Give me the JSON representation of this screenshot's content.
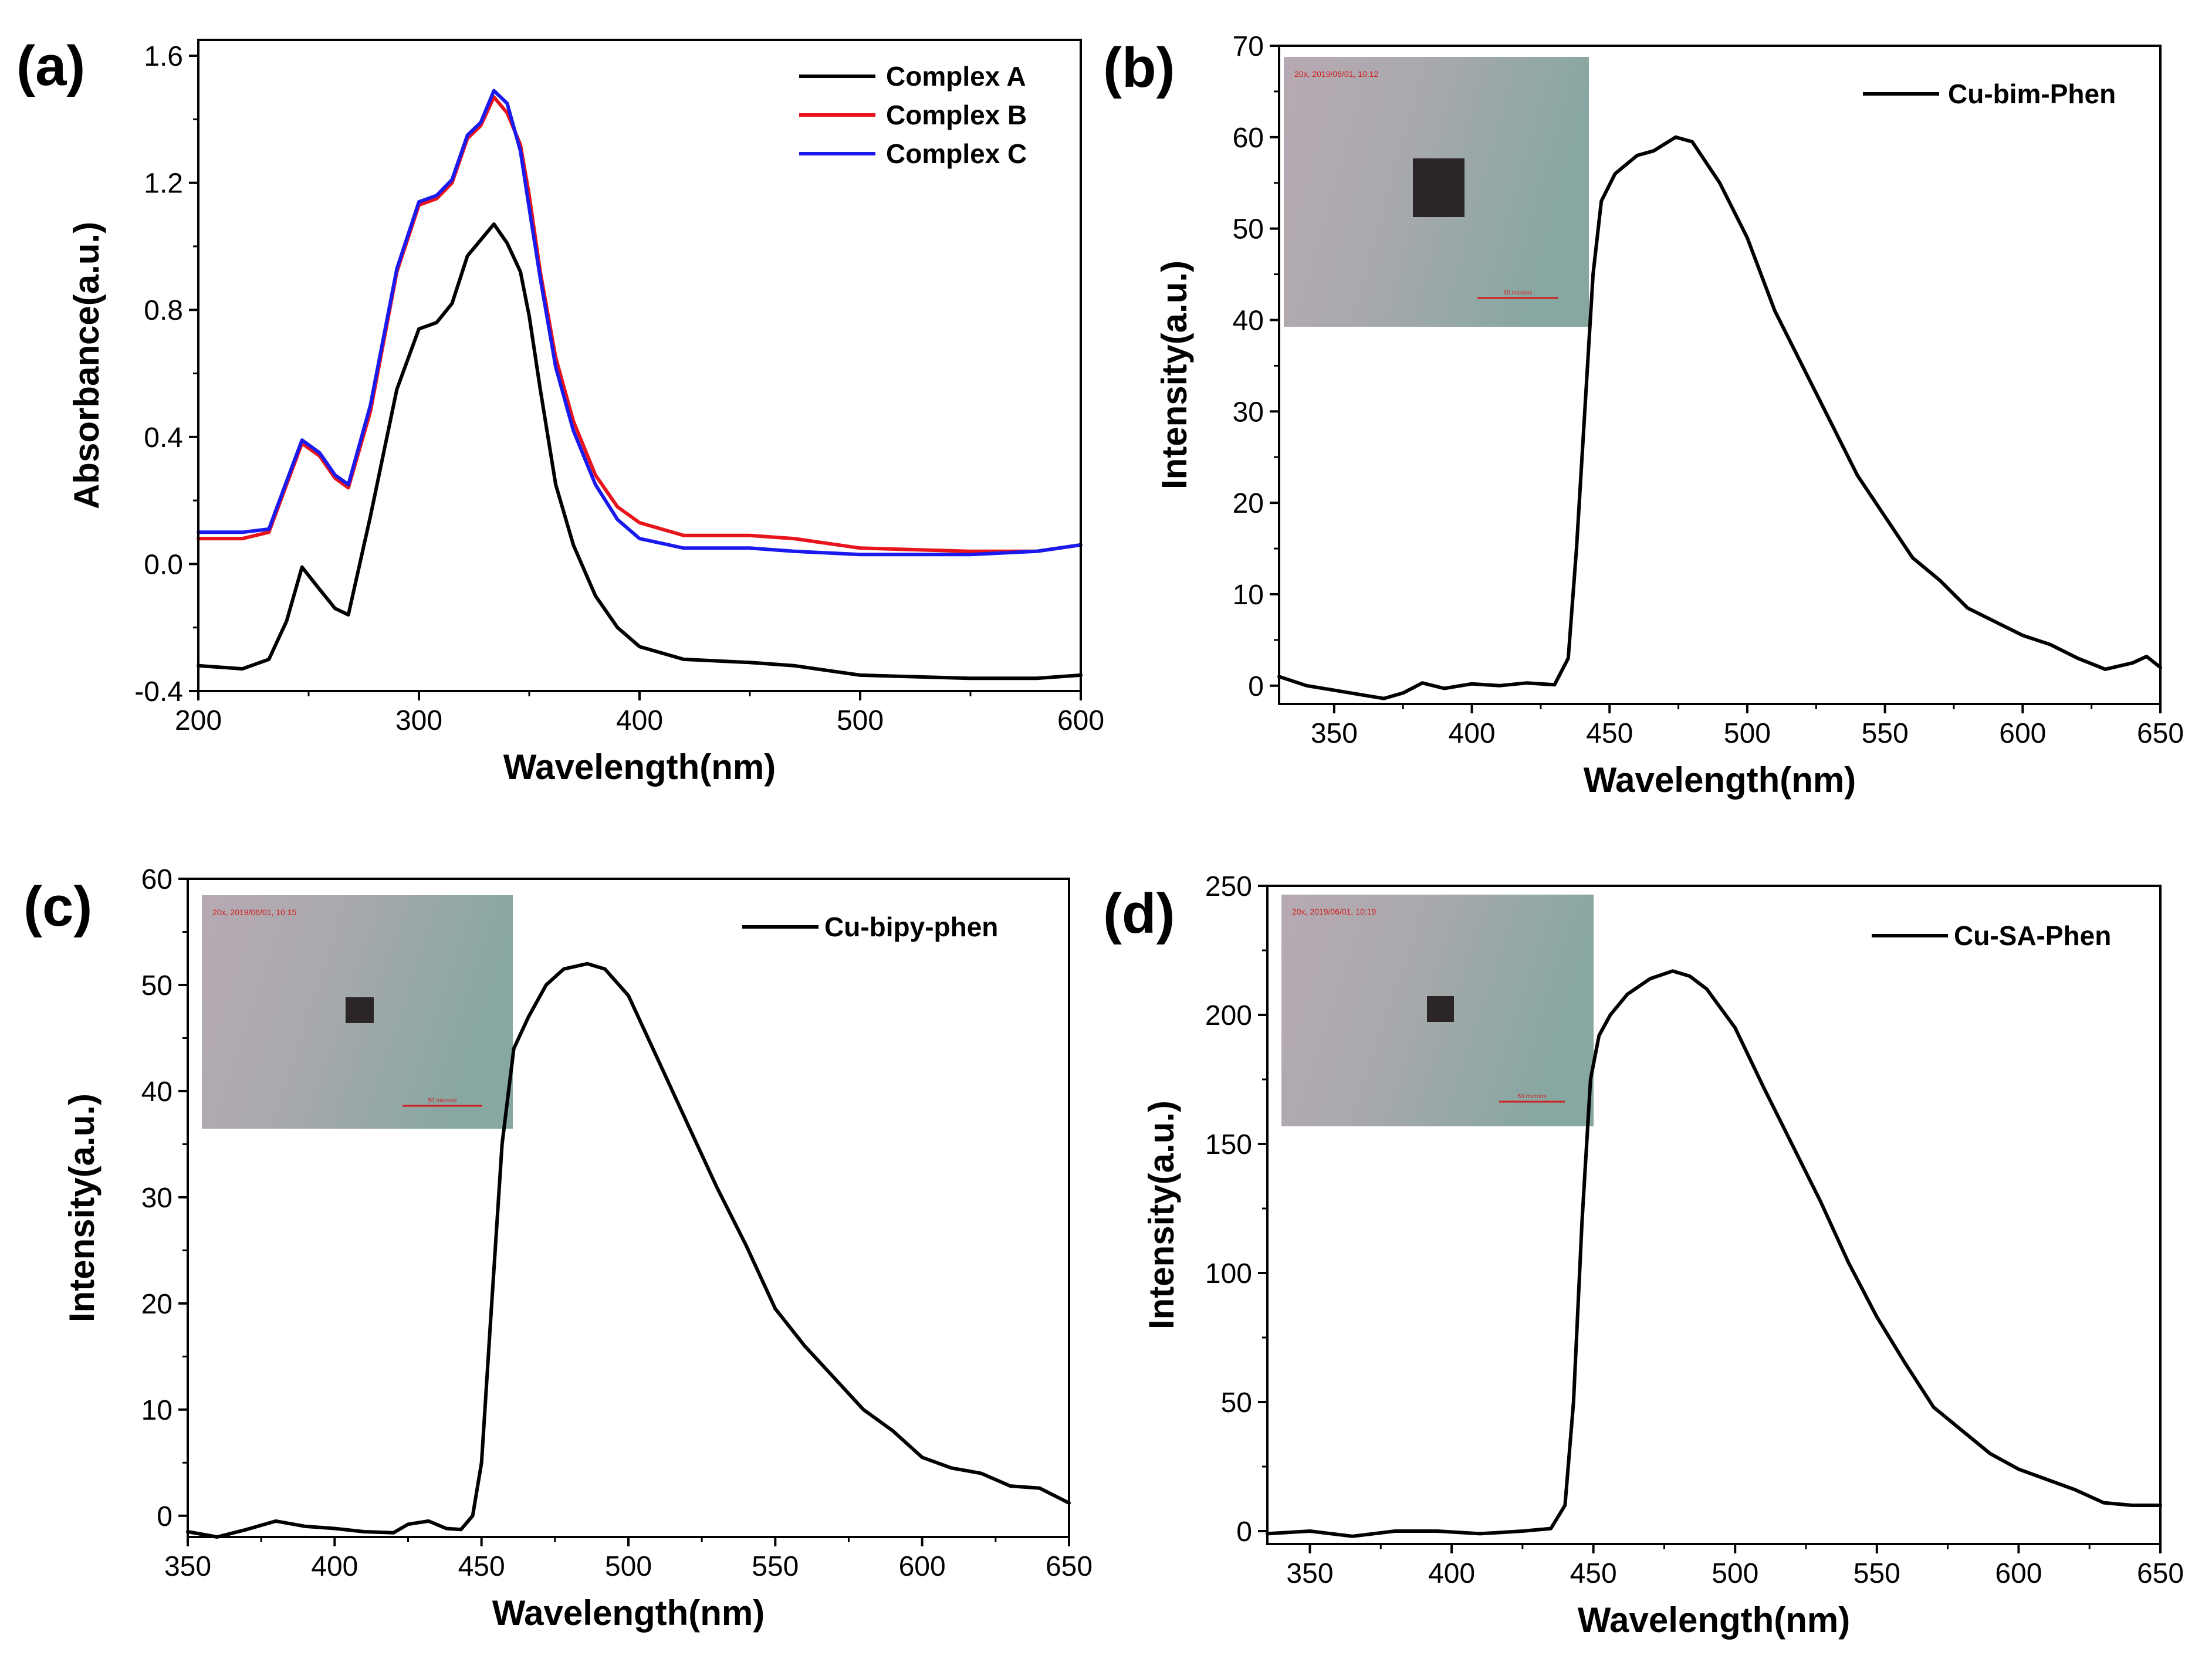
{
  "chart_data": [
    {
      "id": "a",
      "panel_label": "(a)",
      "type": "line",
      "xlabel": "Wavelength(nm)",
      "ylabel": "Absorbance(a.u.)",
      "xlim": [
        200,
        600
      ],
      "ylim": [
        -0.4,
        1.65
      ],
      "xticks": [
        200,
        300,
        400,
        500,
        600
      ],
      "yticks": [
        -0.4,
        0.0,
        0.4,
        0.8,
        1.2,
        1.6
      ],
      "ytick_labels": [
        "-0.4",
        "0.0",
        "0.4",
        "0.8",
        "1.2",
        "1.6"
      ],
      "legend_position": "top-right",
      "series": [
        {
          "name": "Complex A",
          "color": "#000000",
          "x": [
            200,
            220,
            232,
            240,
            247,
            255,
            262,
            268,
            278,
            290,
            300,
            308,
            315,
            322,
            328,
            334,
            340,
            346,
            350,
            355,
            362,
            370,
            380,
            390,
            400,
            420,
            450,
            470,
            500,
            550,
            580,
            600
          ],
          "y": [
            -0.32,
            -0.33,
            -0.3,
            -0.18,
            -0.01,
            -0.08,
            -0.14,
            -0.16,
            0.15,
            0.55,
            0.74,
            0.76,
            0.82,
            0.97,
            1.02,
            1.07,
            1.01,
            0.92,
            0.78,
            0.55,
            0.25,
            0.06,
            -0.1,
            -0.2,
            -0.26,
            -0.3,
            -0.31,
            -0.32,
            -0.35,
            -0.36,
            -0.36,
            -0.35
          ]
        },
        {
          "name": "Complex B",
          "color": "#e8141c",
          "x": [
            200,
            220,
            232,
            240,
            247,
            255,
            262,
            268,
            278,
            290,
            300,
            308,
            315,
            322,
            328,
            334,
            340,
            346,
            350,
            355,
            362,
            370,
            380,
            390,
            400,
            420,
            450,
            470,
            500,
            550,
            580,
            600
          ],
          "y": [
            0.08,
            0.08,
            0.1,
            0.25,
            0.38,
            0.34,
            0.27,
            0.24,
            0.48,
            0.92,
            1.13,
            1.15,
            1.2,
            1.34,
            1.38,
            1.47,
            1.42,
            1.32,
            1.16,
            0.92,
            0.65,
            0.45,
            0.28,
            0.18,
            0.13,
            0.09,
            0.09,
            0.08,
            0.05,
            0.04,
            0.04,
            0.06
          ]
        },
        {
          "name": "Complex C",
          "color": "#1a1aee",
          "x": [
            200,
            220,
            232,
            240,
            247,
            255,
            262,
            268,
            278,
            290,
            300,
            308,
            315,
            322,
            328,
            334,
            340,
            346,
            350,
            355,
            362,
            370,
            380,
            390,
            400,
            420,
            450,
            470,
            500,
            550,
            580,
            600
          ],
          "y": [
            0.1,
            0.1,
            0.11,
            0.26,
            0.39,
            0.35,
            0.28,
            0.25,
            0.5,
            0.93,
            1.14,
            1.16,
            1.21,
            1.35,
            1.39,
            1.49,
            1.45,
            1.3,
            1.12,
            0.9,
            0.62,
            0.42,
            0.25,
            0.14,
            0.08,
            0.05,
            0.05,
            0.04,
            0.03,
            0.03,
            0.04,
            0.06
          ]
        }
      ]
    },
    {
      "id": "b",
      "panel_label": "(b)",
      "type": "line",
      "xlabel": "Wavelength(nm)",
      "ylabel": "Intensity(a.u.)",
      "xlim": [
        330,
        650
      ],
      "ylim": [
        -2,
        70
      ],
      "xticks": [
        350,
        400,
        450,
        500,
        550,
        600,
        650
      ],
      "yticks": [
        0,
        10,
        20,
        30,
        40,
        50,
        60,
        70
      ],
      "legend_position": "top-right",
      "inset": {
        "caption": "20x, 2019/06/01, 10:12",
        "scale_text": "50 microns"
      },
      "series": [
        {
          "name": "Cu-bim-Phen",
          "color": "#000000",
          "x": [
            330,
            340,
            350,
            360,
            368,
            375,
            382,
            390,
            400,
            410,
            420,
            430,
            435,
            438,
            441,
            444,
            447,
            452,
            460,
            466,
            474,
            480,
            490,
            500,
            510,
            520,
            530,
            540,
            550,
            560,
            570,
            580,
            590,
            600,
            610,
            620,
            630,
            640,
            645,
            650
          ],
          "y": [
            1,
            0,
            -0.5,
            -1,
            -1.4,
            -0.8,
            0.3,
            -0.3,
            0.2,
            0,
            0.3,
            0.1,
            3,
            15,
            30,
            45,
            53,
            56,
            58,
            58.5,
            60,
            59.5,
            55,
            49,
            41,
            35,
            29,
            23,
            18.5,
            14,
            11.5,
            8.5,
            7,
            5.5,
            4.5,
            3,
            1.8,
            2.5,
            3.2,
            2
          ]
        }
      ]
    },
    {
      "id": "c",
      "panel_label": "(c)",
      "type": "line",
      "xlabel": "Wavelength(nm)",
      "ylabel": "Intensity(a.u.)",
      "xlim": [
        350,
        650
      ],
      "ylim": [
        -2,
        60
      ],
      "xticks": [
        350,
        400,
        450,
        500,
        550,
        600,
        650
      ],
      "yticks": [
        0,
        10,
        20,
        30,
        40,
        50,
        60
      ],
      "legend_position": "top-right",
      "inset": {
        "caption": "20x, 2019/06/01, 10:15",
        "scale_text": "50 microns"
      },
      "series": [
        {
          "name": "Cu-bipy-phen",
          "color": "#000000",
          "x": [
            350,
            360,
            370,
            380,
            390,
            400,
            410,
            420,
            425,
            432,
            438,
            443,
            447,
            450,
            453,
            457,
            461,
            466,
            472,
            478,
            486,
            492,
            500,
            510,
            520,
            530,
            540,
            550,
            560,
            570,
            580,
            590,
            600,
            610,
            620,
            630,
            640,
            650
          ],
          "y": [
            -1.5,
            -2,
            -1.3,
            -0.5,
            -1,
            -1.2,
            -1.5,
            -1.6,
            -0.8,
            -0.5,
            -1.2,
            -1.3,
            0,
            5,
            18,
            35,
            44,
            47,
            50,
            51.5,
            52,
            51.5,
            49,
            43,
            37,
            31,
            25.5,
            19.5,
            16,
            13,
            10,
            8,
            5.5,
            4.5,
            4,
            2.8,
            2.6,
            1.2
          ]
        }
      ]
    },
    {
      "id": "d",
      "panel_label": "(d)",
      "type": "line",
      "xlabel": "Wavelength(nm)",
      "ylabel": "Intensity(a.u.)",
      "xlim": [
        335,
        650
      ],
      "ylim": [
        -5,
        250
      ],
      "xticks": [
        350,
        400,
        450,
        500,
        550,
        600,
        650
      ],
      "yticks": [
        0,
        50,
        100,
        150,
        200,
        250
      ],
      "legend_position": "top-right",
      "inset": {
        "caption": "20x, 2019/06/01, 10:19",
        "scale_text": "50 microns"
      },
      "series": [
        {
          "name": "Cu-SA-Phen",
          "color": "#000000",
          "x": [
            335,
            350,
            365,
            380,
            395,
            410,
            425,
            435,
            440,
            443,
            446,
            449,
            452,
            456,
            462,
            470,
            478,
            484,
            490,
            500,
            510,
            520,
            530,
            540,
            550,
            560,
            570,
            580,
            590,
            600,
            610,
            620,
            630,
            640,
            650
          ],
          "y": [
            -1,
            0,
            -2,
            0,
            0,
            -1,
            0,
            1,
            10,
            50,
            120,
            175,
            192,
            200,
            208,
            214,
            217,
            215,
            210,
            195,
            172,
            150,
            128,
            104,
            83,
            65,
            48,
            39,
            30,
            24,
            20,
            16,
            11,
            10,
            10
          ]
        }
      ]
    }
  ]
}
